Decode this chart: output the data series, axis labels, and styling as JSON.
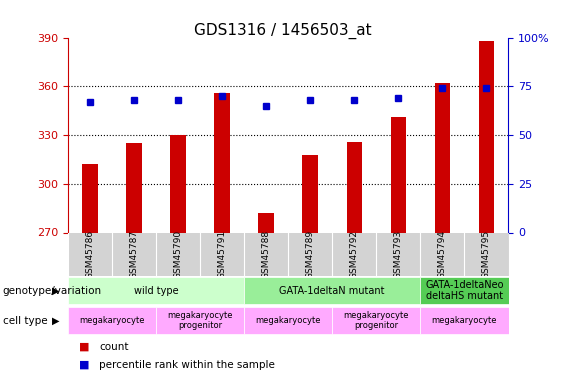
{
  "title": "GDS1316 / 1456503_at",
  "samples": [
    "GSM45786",
    "GSM45787",
    "GSM45790",
    "GSM45791",
    "GSM45788",
    "GSM45789",
    "GSM45792",
    "GSM45793",
    "GSM45794",
    "GSM45795"
  ],
  "counts": [
    312,
    325,
    330,
    356,
    282,
    318,
    326,
    341,
    362,
    388
  ],
  "percentile_ranks": [
    67,
    68,
    68,
    70,
    65,
    68,
    68,
    69,
    74,
    74
  ],
  "ymin": 270,
  "ymax": 390,
  "yticks": [
    270,
    300,
    330,
    360,
    390
  ],
  "y2min": 0,
  "y2max": 100,
  "y2ticks": [
    0,
    25,
    50,
    75,
    100
  ],
  "bar_color": "#cc0000",
  "dot_color": "#0000cc",
  "grid_color": "#000000",
  "bg_color": "#ffffff",
  "plot_bg_color": "#ffffff",
  "genotype_groups": [
    {
      "label": "wild type",
      "start": 0,
      "end": 4,
      "color": "#99ff99"
    },
    {
      "label": "GATA-1deltaN mutant",
      "start": 4,
      "end": 8,
      "color": "#66ff66"
    },
    {
      "label": "GATA-1deltaNeo\ndeltaHS mutant",
      "start": 8,
      "end": 10,
      "color": "#33cc33"
    }
  ],
  "cell_type_groups": [
    {
      "label": "megakaryocyte",
      "start": 0,
      "end": 2,
      "color": "#ff99ff"
    },
    {
      "label": "megakaryocyte\nprogenitor",
      "start": 2,
      "end": 4,
      "color": "#ff99ff"
    },
    {
      "label": "megakaryocyte",
      "start": 4,
      "end": 6,
      "color": "#ff99ff"
    },
    {
      "label": "megakaryocyte\nprogenitor",
      "start": 6,
      "end": 8,
      "color": "#ff99ff"
    },
    {
      "label": "megakaryocyte",
      "start": 8,
      "end": 10,
      "color": "#ff99ff"
    }
  ],
  "legend_items": [
    {
      "label": "count",
      "color": "#cc0000",
      "marker": "s"
    },
    {
      "label": "percentile rank within the sample",
      "color": "#0000cc",
      "marker": "s"
    }
  ]
}
